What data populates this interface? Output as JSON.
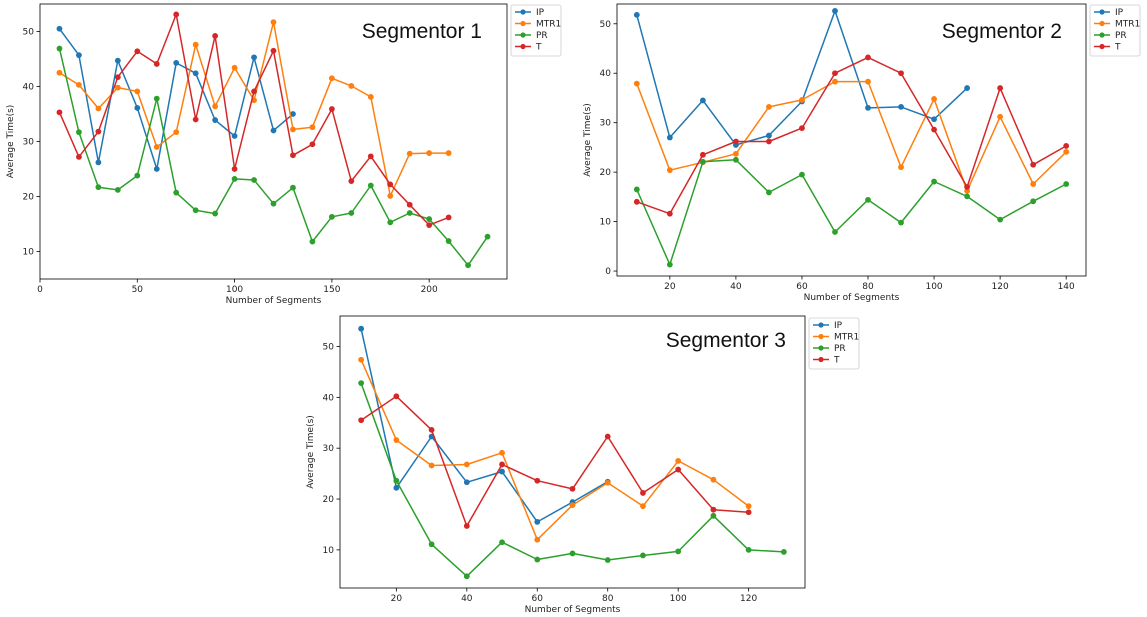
{
  "legend_position": "outside-right",
  "chart_data": [
    {
      "type": "line",
      "title": "Segmentor 1",
      "xlabel": "Number of Segments",
      "ylabel": "Average Time(s)",
      "xlim": [
        0,
        240
      ],
      "ylim": [
        5,
        55
      ],
      "xticks": [
        0,
        50,
        100,
        150,
        200
      ],
      "yticks": [
        10,
        20,
        30,
        40,
        50
      ],
      "series": [
        {
          "name": "IP",
          "color": "#1f77b4",
          "x": [
            10,
            20,
            30,
            40,
            50,
            60,
            70,
            80,
            90,
            100,
            110,
            120,
            130
          ],
          "y": [
            50.5,
            45.7,
            26.2,
            44.7,
            36.1,
            25.0,
            44.3,
            42.4,
            33.9,
            31.0,
            45.3,
            32.0,
            35.0
          ]
        },
        {
          "name": "MTR1",
          "color": "#ff7f0e",
          "x": [
            10,
            20,
            30,
            40,
            50,
            60,
            70,
            80,
            90,
            100,
            110,
            120,
            130,
            140,
            150,
            160,
            170,
            180,
            190,
            200,
            210
          ],
          "y": [
            42.5,
            40.3,
            36.0,
            39.8,
            39.1,
            29.0,
            31.7,
            47.6,
            36.4,
            43.4,
            37.5,
            51.7,
            32.2,
            32.6,
            41.5,
            40.1,
            38.1,
            20.1,
            27.8,
            27.9,
            27.9
          ]
        },
        {
          "name": "PR",
          "color": "#2ca02c",
          "x": [
            10,
            20,
            30,
            40,
            50,
            60,
            70,
            80,
            90,
            100,
            110,
            120,
            130,
            140,
            150,
            160,
            170,
            180,
            190,
            200,
            210,
            220,
            230
          ],
          "y": [
            46.9,
            31.7,
            21.7,
            21.2,
            23.8,
            37.8,
            20.7,
            17.5,
            16.9,
            23.2,
            23.0,
            18.7,
            21.6,
            11.8,
            16.3,
            17.0,
            22.0,
            15.3,
            17.0,
            15.9,
            11.9,
            7.5,
            12.7
          ]
        },
        {
          "name": "T",
          "color": "#d62728",
          "x": [
            10,
            20,
            30,
            40,
            50,
            60,
            70,
            80,
            90,
            100,
            110,
            120,
            130,
            140,
            150,
            160,
            170,
            180,
            190,
            200,
            210
          ],
          "y": [
            35.3,
            27.2,
            31.8,
            41.7,
            46.4,
            44.1,
            53.1,
            34.0,
            49.2,
            25.0,
            39.1,
            46.5,
            27.5,
            29.5,
            35.9,
            22.8,
            27.3,
            22.2,
            18.5,
            14.8,
            16.2
          ]
        }
      ]
    },
    {
      "type": "line",
      "title": "Segmentor 2",
      "xlabel": "Number of Segments",
      "ylabel": "Average Time(s)",
      "xlim": [
        4,
        146
      ],
      "ylim": [
        -1,
        54
      ],
      "xticks": [
        20,
        40,
        60,
        80,
        100,
        120,
        140
      ],
      "yticks": [
        0,
        10,
        20,
        30,
        40,
        50
      ],
      "series": [
        {
          "name": "IP",
          "color": "#1f77b4",
          "x": [
            10,
            20,
            30,
            40,
            50,
            60,
            70,
            80,
            90,
            100,
            110
          ],
          "y": [
            51.8,
            27.0,
            34.5,
            25.5,
            27.4,
            34.3,
            52.6,
            33.0,
            33.2,
            30.7,
            37.0
          ]
        },
        {
          "name": "MTR1",
          "color": "#ff7f0e",
          "x": [
            10,
            20,
            30,
            40,
            50,
            60,
            70,
            80,
            90,
            100,
            110,
            120,
            130,
            140
          ],
          "y": [
            37.9,
            20.4,
            22.0,
            23.7,
            33.2,
            34.6,
            38.3,
            38.3,
            21.0,
            34.8,
            16.2,
            31.2,
            17.6,
            24.1
          ]
        },
        {
          "name": "PR",
          "color": "#2ca02c",
          "x": [
            10,
            20,
            30,
            40,
            50,
            60,
            70,
            80,
            90,
            100,
            110,
            120,
            130,
            140
          ],
          "y": [
            16.5,
            1.3,
            22.1,
            22.5,
            15.9,
            19.5,
            7.9,
            14.4,
            9.8,
            18.1,
            15.1,
            10.4,
            14.1,
            17.6
          ]
        },
        {
          "name": "T",
          "color": "#d62728",
          "x": [
            10,
            20,
            30,
            40,
            50,
            60,
            70,
            80,
            90,
            100,
            110,
            120,
            130,
            140
          ],
          "y": [
            14.0,
            11.6,
            23.5,
            26.2,
            26.2,
            28.9,
            40.0,
            43.2,
            40.0,
            28.6,
            17.0,
            37.0,
            21.5,
            25.3
          ]
        }
      ]
    },
    {
      "type": "line",
      "title": "Segmentor 3",
      "xlabel": "Number of Segments",
      "ylabel": "Average Time(s)",
      "xlim": [
        4,
        136
      ],
      "ylim": [
        2.5,
        56
      ],
      "xticks": [
        20,
        40,
        60,
        80,
        100,
        120
      ],
      "yticks": [
        10,
        20,
        30,
        40,
        50
      ],
      "series": [
        {
          "name": "IP",
          "color": "#1f77b4",
          "x": [
            10,
            20,
            30,
            40,
            50,
            60,
            70,
            80
          ],
          "y": [
            53.5,
            22.2,
            32.3,
            23.3,
            25.4,
            15.5,
            19.4,
            23.4
          ]
        },
        {
          "name": "MTR1",
          "color": "#ff7f0e",
          "x": [
            10,
            20,
            30,
            40,
            50,
            60,
            70,
            80,
            90,
            100,
            110,
            120
          ],
          "y": [
            47.4,
            31.6,
            26.6,
            26.8,
            29.1,
            12.0,
            18.8,
            23.2,
            18.6,
            27.5,
            23.8,
            18.6
          ]
        },
        {
          "name": "PR",
          "color": "#2ca02c",
          "x": [
            10,
            20,
            30,
            40,
            50,
            60,
            70,
            80,
            90,
            100,
            110,
            120,
            130
          ],
          "y": [
            42.8,
            23.6,
            11.1,
            4.8,
            11.5,
            8.1,
            9.3,
            8.0,
            8.9,
            9.7,
            16.7,
            10.0,
            9.6
          ]
        },
        {
          "name": "T",
          "color": "#d62728",
          "x": [
            10,
            20,
            30,
            40,
            50,
            60,
            70,
            80,
            90,
            100,
            110,
            120
          ],
          "y": [
            35.5,
            40.2,
            33.6,
            14.7,
            26.8,
            23.6,
            22.0,
            32.3,
            21.2,
            25.8,
            17.9,
            17.4
          ]
        }
      ]
    }
  ]
}
